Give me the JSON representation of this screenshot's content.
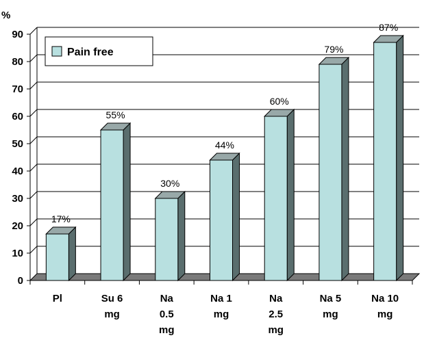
{
  "chart_data": {
    "type": "bar",
    "categories": [
      [
        "Pl"
      ],
      [
        "Su 6",
        "mg"
      ],
      [
        "Na",
        "0.5",
        "mg"
      ],
      [
        "Na 1",
        "mg"
      ],
      [
        "Na",
        "2.5",
        "mg"
      ],
      [
        "Na 5",
        "mg"
      ],
      [
        "Na 10",
        "mg"
      ]
    ],
    "series": [
      {
        "name": "Pain free",
        "values": [
          17,
          55,
          30,
          44,
          60,
          79,
          87
        ],
        "data_labels": [
          "17%",
          "55%",
          "30%",
          "44%",
          "60%",
          "79%",
          "87%"
        ]
      }
    ],
    "ylabel": "%",
    "ylim": [
      0,
      90
    ],
    "yticks": [
      0,
      10,
      20,
      30,
      40,
      50,
      60,
      70,
      80,
      90
    ],
    "grid": true,
    "legend_position": "top-left",
    "colors": {
      "bar_front": "#b8e0e0",
      "bar_side": "#5a6e6e",
      "bar_top": "#98a8a8",
      "floor": "#7a7a7a",
      "gridline": "#000000"
    }
  }
}
